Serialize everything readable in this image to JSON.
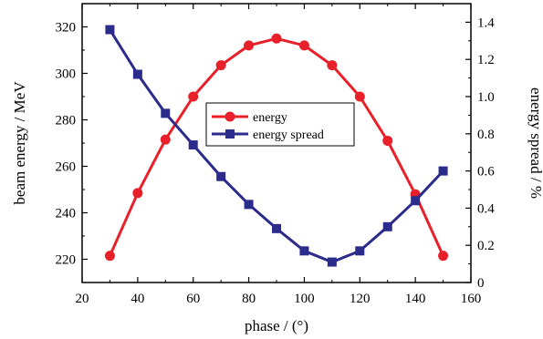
{
  "chart_data": {
    "type": "line",
    "xlabel": "phase / (°)",
    "ylabel": "beam energy / MeV",
    "y2label": "energy spread / %",
    "xlim": [
      20,
      160
    ],
    "ylim": [
      210,
      330
    ],
    "y2lim": [
      0,
      1.5
    ],
    "xticks": [
      20,
      40,
      60,
      80,
      100,
      120,
      140,
      160
    ],
    "yticks": [
      220,
      240,
      260,
      280,
      300,
      320
    ],
    "y2ticks": [
      "0",
      "0.2",
      "0.4",
      "0.6",
      "0.8",
      "1.0",
      "1.2",
      "1.4"
    ],
    "legend_position": "center",
    "grid": false,
    "series": [
      {
        "name": "energy",
        "axis": "left",
        "color": "#e8202a",
        "marker": "circle",
        "x": [
          30,
          40,
          50,
          60,
          70,
          80,
          90,
          100,
          110,
          120,
          130,
          140,
          150
        ],
        "y": [
          221.5,
          248.5,
          271.5,
          290,
          303.5,
          312,
          315,
          312,
          303.5,
          290,
          271,
          248,
          221.5
        ]
      },
      {
        "name": "energy spread",
        "axis": "right",
        "color": "#2b2b8c",
        "marker": "square",
        "x": [
          30,
          40,
          50,
          60,
          70,
          80,
          90,
          100,
          110,
          120,
          130,
          140,
          150
        ],
        "y": [
          1.36,
          1.12,
          0.91,
          0.74,
          0.57,
          0.42,
          0.29,
          0.17,
          0.11,
          0.17,
          0.3,
          0.44,
          0.6
        ]
      }
    ]
  }
}
